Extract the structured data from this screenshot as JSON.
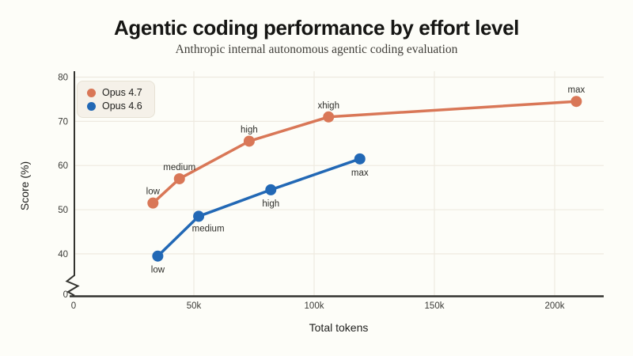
{
  "chart_data": {
    "type": "line",
    "title": "Agentic coding performance by effort level",
    "subtitle": "Anthropic internal autonomous agentic coding evaluation",
    "xlabel": "Total tokens",
    "ylabel": "Score (%)",
    "xlim_tokens": [
      0,
      220000
    ],
    "ylim": [
      0,
      80
    ],
    "y_axis_break": {
      "shown": true,
      "zero_label": "0",
      "visible_range": [
        40,
        80
      ]
    },
    "grid": true,
    "legend_position": "top-left",
    "x_ticks": [
      {
        "value": 0,
        "label": "0"
      },
      {
        "value": 50000,
        "label": "50k"
      },
      {
        "value": 100000,
        "label": "100k"
      },
      {
        "value": 150000,
        "label": "150k"
      },
      {
        "value": 200000,
        "label": "200k"
      }
    ],
    "y_ticks": [
      {
        "value": 40,
        "label": "40"
      },
      {
        "value": 50,
        "label": "50"
      },
      {
        "value": 60,
        "label": "60"
      },
      {
        "value": 70,
        "label": "70"
      },
      {
        "value": 80,
        "label": "80"
      }
    ],
    "series": [
      {
        "name": "Opus 4.7",
        "color": "#d97757",
        "points": [
          {
            "label": "low",
            "tokens": 33000,
            "score": 51.5,
            "label_pos": "above"
          },
          {
            "label": "medium",
            "tokens": 44000,
            "score": 57,
            "label_pos": "above"
          },
          {
            "label": "high",
            "tokens": 73000,
            "score": 65.5,
            "label_pos": "above"
          },
          {
            "label": "xhigh",
            "tokens": 106000,
            "score": 71,
            "label_pos": "above"
          },
          {
            "label": "max",
            "tokens": 209000,
            "score": 74.5,
            "label_pos": "above"
          }
        ]
      },
      {
        "name": "Opus 4.6",
        "color": "#2268b5",
        "points": [
          {
            "label": "low",
            "tokens": 35000,
            "score": 39.5,
            "label_pos": "below"
          },
          {
            "label": "medium",
            "tokens": 52000,
            "score": 48.5,
            "label_pos": "below-right"
          },
          {
            "label": "high",
            "tokens": 82000,
            "score": 54.5,
            "label_pos": "below"
          },
          {
            "label": "max",
            "tokens": 119000,
            "score": 61.5,
            "label_pos": "below"
          }
        ]
      }
    ],
    "colors": {
      "background": "#fdfdf8",
      "gridline": "#eeeae0",
      "axis": "#33332f",
      "tick_text": "#3b3b37",
      "point_label_text": "#2e2e2a",
      "legend_background": "#f5f1e9"
    }
  }
}
